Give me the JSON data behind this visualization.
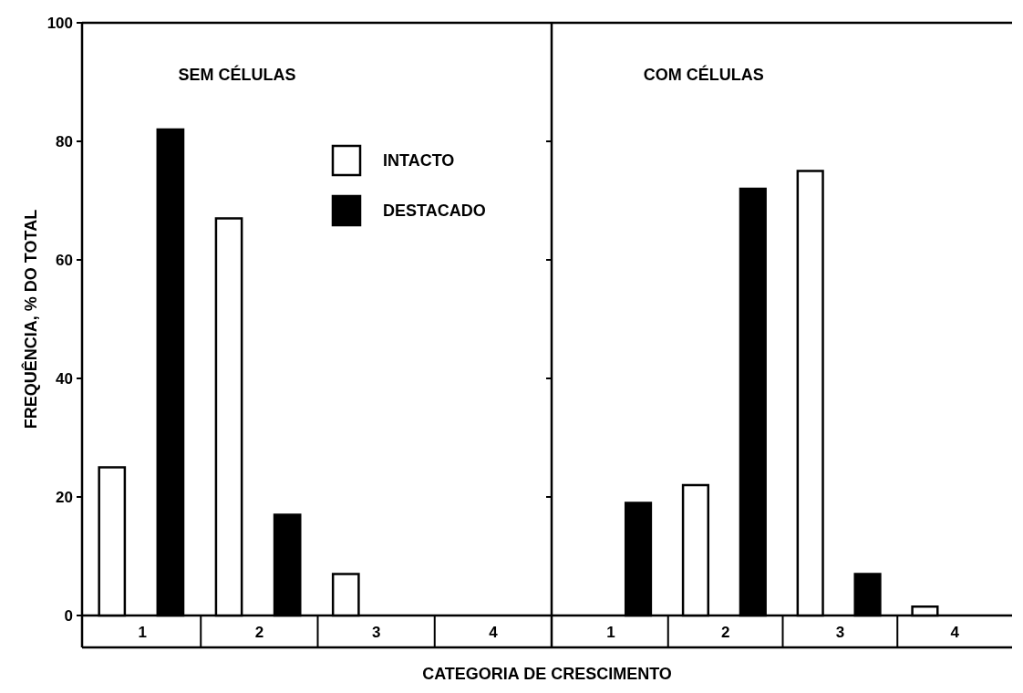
{
  "chart_data": [
    {
      "type": "bar",
      "title": "SEM CÉLULAS",
      "xlabel": "CATEGORIA DE CRESCIMENTO",
      "ylabel": "FREQUÊNCIA, % DO TOTAL",
      "categories": [
        "1",
        "2",
        "3",
        "4"
      ],
      "ylim": [
        0,
        100
      ],
      "yticks": [
        0,
        20,
        40,
        60,
        80,
        100
      ],
      "legend": "top right",
      "grid": false,
      "series": [
        {
          "name": "INTACTO",
          "color": "#ffffff",
          "values": [
            25,
            67,
            7,
            0
          ]
        },
        {
          "name": "DESTACADO",
          "color": "#000000",
          "values": [
            82,
            17,
            0,
            0
          ]
        }
      ]
    },
    {
      "type": "bar",
      "title": "COM CÉLULAS",
      "categories": [
        "1",
        "2",
        "3",
        "4"
      ],
      "ylim": [
        0,
        100
      ],
      "yticks": [
        0,
        20,
        40,
        60,
        80,
        100
      ],
      "tick_labels": "x",
      "grid": false,
      "series": [
        {
          "color": "#ffffff",
          "values": [
            0,
            22,
            75,
            1.5
          ]
        },
        {
          "color": "#000000",
          "values": [
            19,
            72,
            7,
            0
          ]
        }
      ]
    }
  ]
}
